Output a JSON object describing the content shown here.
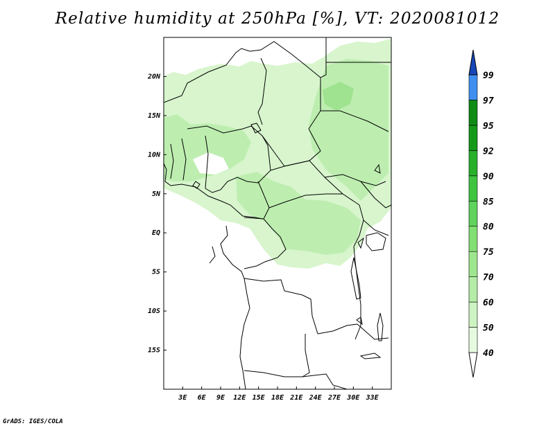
{
  "title": "Relative humidity at 250hPa [%], VT: 2020081012",
  "footer": "GrADS: IGES/COLA",
  "map": {
    "lon_range": [
      0,
      36
    ],
    "lat_range": [
      -20,
      25
    ],
    "lon_ticks": [
      {
        "value": 3,
        "label": "3E"
      },
      {
        "value": 6,
        "label": "6E"
      },
      {
        "value": 9,
        "label": "9E"
      },
      {
        "value": 12,
        "label": "12E"
      },
      {
        "value": 15,
        "label": "15E"
      },
      {
        "value": 18,
        "label": "18E"
      },
      {
        "value": 21,
        "label": "21E"
      },
      {
        "value": 24,
        "label": "24E"
      },
      {
        "value": 27,
        "label": "27E"
      },
      {
        "value": 30,
        "label": "30E"
      },
      {
        "value": 33,
        "label": "33E"
      }
    ],
    "lat_ticks": [
      {
        "value": 20,
        "label": "20N"
      },
      {
        "value": 15,
        "label": "15N"
      },
      {
        "value": 10,
        "label": "10N"
      },
      {
        "value": 5,
        "label": "5N"
      },
      {
        "value": 0,
        "label": "EQ"
      },
      {
        "value": -5,
        "label": "5S"
      },
      {
        "value": -10,
        "label": "10S"
      },
      {
        "value": -15,
        "label": "15S"
      }
    ]
  },
  "colorbar": {
    "levels": [
      "40",
      "50",
      "60",
      "70",
      "75",
      "80",
      "85",
      "90",
      "92",
      "95",
      "97",
      "99"
    ],
    "colors": [
      "#e6fae0",
      "#cdf3c3",
      "#b4eca8",
      "#9ee68d",
      "#82df73",
      "#5fd35b",
      "#3ec43f",
      "#29b02b",
      "#159a18",
      "#0e8c14",
      "#3e8ff0",
      "#1f66d6",
      "#1747b8"
    ],
    "below_color": "#ffffff"
  },
  "colors": {
    "land_outline": "#000000",
    "humid_light": "#d8f5cd",
    "humid_mid": "#bdeeb0",
    "humid_strong": "#9fe28f"
  }
}
